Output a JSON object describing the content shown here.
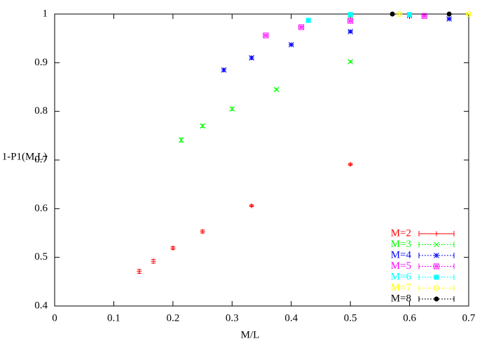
{
  "chart_data": {
    "type": "scatter",
    "xlabel": "M/L",
    "ylabel": "1-P1(M,L)",
    "xlim": [
      0,
      0.7
    ],
    "ylim": [
      0.4,
      1
    ],
    "xticks": [
      0,
      0.1,
      0.2,
      0.3,
      0.4,
      0.5,
      0.6,
      0.7
    ],
    "yticks": [
      0.4,
      0.5,
      0.6,
      0.7,
      0.8,
      0.9,
      1
    ],
    "legend": "bottom-right",
    "series": [
      {
        "name": "M=2",
        "color": "#ff0000",
        "marker": "plus",
        "x": [
          0.143,
          0.167,
          0.2,
          0.25,
          0.333,
          0.5
        ],
        "values": [
          0.471,
          0.492,
          0.519,
          0.553,
          0.606,
          0.691
        ],
        "errors": [
          0.004,
          0.004,
          0.003,
          0.003,
          0.002,
          0.002
        ]
      },
      {
        "name": "M=3",
        "color": "#00ff00",
        "marker": "cross",
        "x": [
          0.214,
          0.25,
          0.3,
          0.375,
          0.5,
          0.5
        ],
        "values": [
          0.741,
          0.77,
          0.805,
          0.845,
          0.902,
          0.997
        ],
        "errors": [
          0.004,
          0.003,
          0.003,
          0.002,
          0.002,
          0.002
        ]
      },
      {
        "name": "M=4",
        "color": "#0000ff",
        "marker": "star",
        "x": [
          0.286,
          0.333,
          0.4,
          0.5,
          0.6,
          0.667
        ],
        "values": [
          0.885,
          0.91,
          0.937,
          0.964,
          0.997,
          0.99
        ],
        "errors": [
          0.003,
          0.003,
          0.002,
          0.002,
          0.002,
          0.002
        ]
      },
      {
        "name": "M=5",
        "color": "#ff00ff",
        "marker": "box",
        "x": [
          0.357,
          0.417,
          0.5,
          0.625
        ],
        "values": [
          0.956,
          0.973,
          0.986,
          0.996
        ],
        "errors": [
          0.002,
          0.002,
          0.002,
          0.002
        ]
      },
      {
        "name": "M=6",
        "color": "#00ffff",
        "marker": "fbox",
        "x": [
          0.429,
          0.5,
          0.6
        ],
        "values": [
          0.987,
          0.999,
          0.999
        ],
        "errors": [
          0.002,
          0.002,
          0.002
        ]
      },
      {
        "name": "M=7",
        "color": "#ffff00",
        "marker": "circle",
        "x": [
          0.583,
          0.7
        ],
        "values": [
          1,
          1
        ],
        "errors": [
          0.001,
          0.001
        ]
      },
      {
        "name": "M=8",
        "color": "#000000",
        "marker": "fcircle",
        "x": [
          0.571,
          0.667
        ],
        "values": [
          1,
          1
        ],
        "errors": [
          0.001,
          0.001
        ]
      }
    ]
  }
}
